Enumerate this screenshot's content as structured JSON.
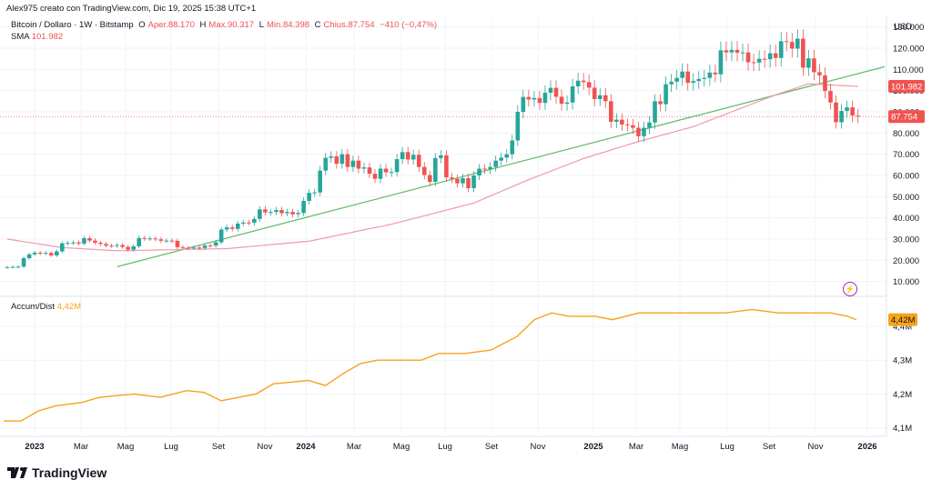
{
  "header": {
    "credit": "Alex975 creato con TradingView.com, Dic 19, 2025 15:38 UTC+1"
  },
  "legend": {
    "symbol": "Bitcoin / Dollaro · 1W · Bitstamp",
    "o_label": "O",
    "o_value": "Aper.88.170",
    "h_label": "H",
    "h_value": "Max.90.317",
    "l_label": "L",
    "l_value": "Min.84.398",
    "c_label": "C",
    "c_value": "Chius.87.754",
    "change": "−410 (−0,47%)",
    "sma_label": "SMA",
    "sma_value": "101.982",
    "ad_label": "Accum/Dist",
    "ad_value": "4,42M"
  },
  "axis": {
    "currency": "USD",
    "price_labels": [
      "130.000",
      "120.000",
      "110.000",
      "100.000",
      "90.000",
      "80.000",
      "70.000",
      "60.000",
      "50.000",
      "40.000",
      "30.000",
      "20.000",
      "10.000"
    ],
    "ad_labels": [
      "4,4M",
      "4,3M",
      "4,2M",
      "4,1M"
    ],
    "time_labels": [
      "2023",
      "Mar",
      "Mag",
      "Lug",
      "Set",
      "Nov",
      "2024",
      "Mar",
      "Mag",
      "Lug",
      "Set",
      "Nov",
      "2025",
      "Mar",
      "Mag",
      "Lug",
      "Set",
      "Nov",
      "2026"
    ],
    "bold_time_labels": [
      "2023",
      "2024",
      "2025",
      "2026"
    ]
  },
  "tags": {
    "sma": "101.982",
    "price": "87.754",
    "ad": "4,42M"
  },
  "footer": {
    "brand": "TradingView"
  },
  "colors": {
    "up": "#26a69a",
    "down": "#ef5350",
    "sma": "#ef9aa7",
    "trend": "#66bb6a",
    "ad": "#f7a21c",
    "grid": "#f0f3fa"
  },
  "chart_data": [
    {
      "type": "candlestick",
      "title": "Bitcoin / Dollaro · 1W · Bitstamp",
      "y_unit": "USD",
      "ylim": [
        3000,
        135000
      ],
      "x_start": "2022-12-26",
      "x_interval": "1W",
      "approx_weekly_closes": [
        16800,
        16900,
        17000,
        21000,
        22800,
        23600,
        23200,
        23500,
        22300,
        24200,
        28000,
        28200,
        28400,
        27900,
        30400,
        29300,
        28300,
        27700,
        26900,
        26800,
        27200,
        26300,
        25000,
        26600,
        30500,
        30200,
        30300,
        29900,
        29200,
        29300,
        29200,
        26200,
        26000,
        25900,
        26000,
        25800,
        27000,
        26900,
        28500,
        34500,
        35500,
        34800,
        37300,
        37800,
        37700,
        39500,
        44000,
        42600,
        42800,
        43700,
        42200,
        42800,
        41700,
        42300,
        48000,
        51800,
        52000,
        62300,
        68300,
        69000,
        65500,
        70000,
        64000,
        67000,
        63200,
        63800,
        60800,
        58400,
        63200,
        61500,
        61600,
        67700,
        71000,
        67500,
        69700,
        64000,
        60200,
        57000,
        68200,
        69500,
        59100,
        58400,
        56300,
        58700,
        54000,
        60000,
        63200,
        62900,
        64000,
        67000,
        68400,
        70000,
        76500,
        90000,
        97000,
        95800,
        96500,
        94200,
        99000,
        101300,
        97100,
        93800,
        94400,
        102000,
        104700,
        104000,
        101400,
        96000,
        97800,
        95000,
        85300,
        86300,
        84000,
        83700,
        82500,
        78500,
        82500,
        85000,
        95000,
        93600,
        103000,
        104200,
        106000,
        109000,
        103700,
        104500,
        105500,
        106000,
        108500,
        107700,
        119000,
        118000,
        119200,
        117900,
        118000,
        113400,
        113200,
        115000,
        114800,
        117600,
        115400,
        123300,
        122900,
        119800,
        124500,
        110800,
        115200,
        108700,
        107200,
        99800,
        94400,
        85100,
        90400,
        92100,
        88200,
        87754
      ],
      "series": [
        {
          "name": "SMA",
          "last_value": 101982,
          "approx_values": [
            [
              0,
              30000
            ],
            [
              10,
              26000
            ],
            [
              20,
              24500
            ],
            [
              40,
              25500
            ],
            [
              55,
              29000
            ],
            [
              70,
              37000
            ],
            [
              85,
              47000
            ],
            [
              95,
              58000
            ],
            [
              105,
              68000
            ],
            [
              115,
              76000
            ],
            [
              125,
              83000
            ],
            [
              135,
              93000
            ],
            [
              140,
              98000
            ],
            [
              146,
              103200
            ],
            [
              155,
              101982
            ]
          ]
        },
        {
          "name": "",
          "type": "trendline",
          "points": [
            [
              20,
              17000
            ],
            [
              155,
              108000
            ]
          ]
        }
      ]
    },
    {
      "type": "line",
      "title": "Accum/Dist",
      "ylim": [
        4.08,
        4.47
      ],
      "y_unit": "M",
      "last_value": 4.42,
      "approx_values": [
        [
          0,
          4.12
        ],
        [
          4,
          4.12
        ],
        [
          8,
          4.15
        ],
        [
          12,
          4.165
        ],
        [
          18,
          4.175
        ],
        [
          22,
          4.19
        ],
        [
          26,
          4.195
        ],
        [
          30,
          4.2
        ],
        [
          36,
          4.19
        ],
        [
          42,
          4.21
        ],
        [
          46,
          4.205
        ],
        [
          50,
          4.18
        ],
        [
          54,
          4.19
        ],
        [
          58,
          4.2
        ],
        [
          62,
          4.23
        ],
        [
          66,
          4.235
        ],
        [
          70,
          4.24
        ],
        [
          74,
          4.225
        ],
        [
          78,
          4.26
        ],
        [
          82,
          4.29
        ],
        [
          86,
          4.3
        ],
        [
          90,
          4.3
        ],
        [
          96,
          4.3
        ],
        [
          100,
          4.32
        ],
        [
          106,
          4.32
        ],
        [
          112,
          4.33
        ],
        [
          118,
          4.37
        ],
        [
          122,
          4.42
        ],
        [
          126,
          4.44
        ],
        [
          130,
          4.43
        ],
        [
          136,
          4.43
        ],
        [
          140,
          4.42
        ],
        [
          146,
          4.44
        ],
        [
          150,
          4.44
        ],
        [
          154,
          4.44
        ],
        [
          160,
          4.44
        ],
        [
          166,
          4.44
        ],
        [
          172,
          4.45
        ],
        [
          178,
          4.44
        ],
        [
          184,
          4.44
        ],
        [
          190,
          4.44
        ],
        [
          194,
          4.43
        ],
        [
          196,
          4.42
        ]
      ]
    }
  ]
}
